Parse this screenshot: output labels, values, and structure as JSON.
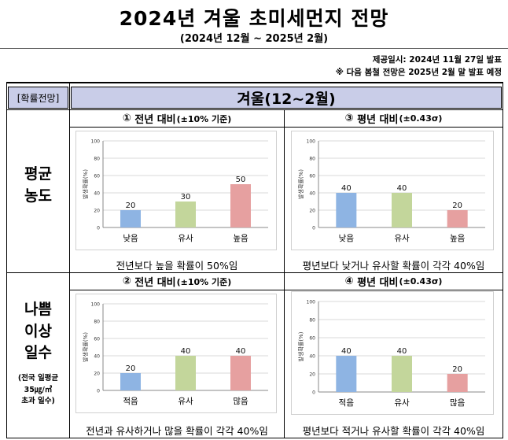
{
  "header": {
    "title": "2024년 겨울 초미세먼지 전망",
    "subtitle": "(2024년 12월 ~ 2025년 2월)",
    "issue_date": "제공일시: 2024년 11월 27일 발표",
    "next_note": "※ 다음 봄철 전망은 2025년 2월 말 발표 예정"
  },
  "table": {
    "header_label": "[확률전망]",
    "season_title": "겨울(12~2월)",
    "rows": [
      {
        "label_lines": [
          "평균",
          "농도"
        ]
      },
      {
        "label_lines": [
          "나쁨",
          "이상",
          "일수"
        ],
        "note_lines": [
          "(전국 일평균",
          "35㎍/㎥",
          "초과 일수)"
        ]
      }
    ]
  },
  "panels": [
    {
      "num": "①",
      "head": "전년 대비",
      "head_note": "(±10% 기준)",
      "caption": "전년보다 높을 확률이 50%임"
    },
    {
      "num": "③",
      "head": "평년 대비",
      "head_note": "(±0.43σ)",
      "caption": "평년보다 낮거나 유사할 확률이 각각 40%임"
    },
    {
      "num": "②",
      "head": "전년 대비",
      "head_note": "(±10% 기준)",
      "caption": "전년과 유사하거나 많을 확률이 각각 40%임"
    },
    {
      "num": "④",
      "head": "평년 대비",
      "head_note": "(±0.43σ)",
      "caption": "평년보다 적거나 유사할 확률이 각각 40%임"
    }
  ],
  "chart_data": [
    {
      "type": "bar",
      "ylabel": "발생확률(%)",
      "ylim": [
        0,
        100
      ],
      "yticks": [
        0,
        20,
        40,
        60,
        80,
        100
      ],
      "categories": [
        "낮음",
        "유사",
        "높음"
      ],
      "values": [
        20,
        30,
        50
      ],
      "colors": [
        "#8eb4e3",
        "#c3d69b",
        "#e6a0a0"
      ]
    },
    {
      "type": "bar",
      "ylabel": "발생확률(%)",
      "ylim": [
        0,
        100
      ],
      "yticks": [
        0,
        20,
        40,
        60,
        80,
        100
      ],
      "categories": [
        "낮음",
        "유사",
        "높음"
      ],
      "values": [
        40,
        40,
        20
      ],
      "colors": [
        "#8eb4e3",
        "#c3d69b",
        "#e6a0a0"
      ]
    },
    {
      "type": "bar",
      "ylabel": "발생확률(%)",
      "ylim": [
        0,
        100
      ],
      "yticks": [
        0,
        20,
        40,
        60,
        80,
        100
      ],
      "categories": [
        "적음",
        "유사",
        "많음"
      ],
      "values": [
        20,
        40,
        40
      ],
      "colors": [
        "#8eb4e3",
        "#c3d69b",
        "#e6a0a0"
      ]
    },
    {
      "type": "bar",
      "ylabel": "발생확률(%)",
      "ylim": [
        0,
        100
      ],
      "yticks": [
        0,
        20,
        40,
        60,
        80,
        100
      ],
      "categories": [
        "적음",
        "유사",
        "많음"
      ],
      "values": [
        40,
        40,
        20
      ],
      "colors": [
        "#8eb4e3",
        "#c3d69b",
        "#e6a0a0"
      ]
    }
  ]
}
